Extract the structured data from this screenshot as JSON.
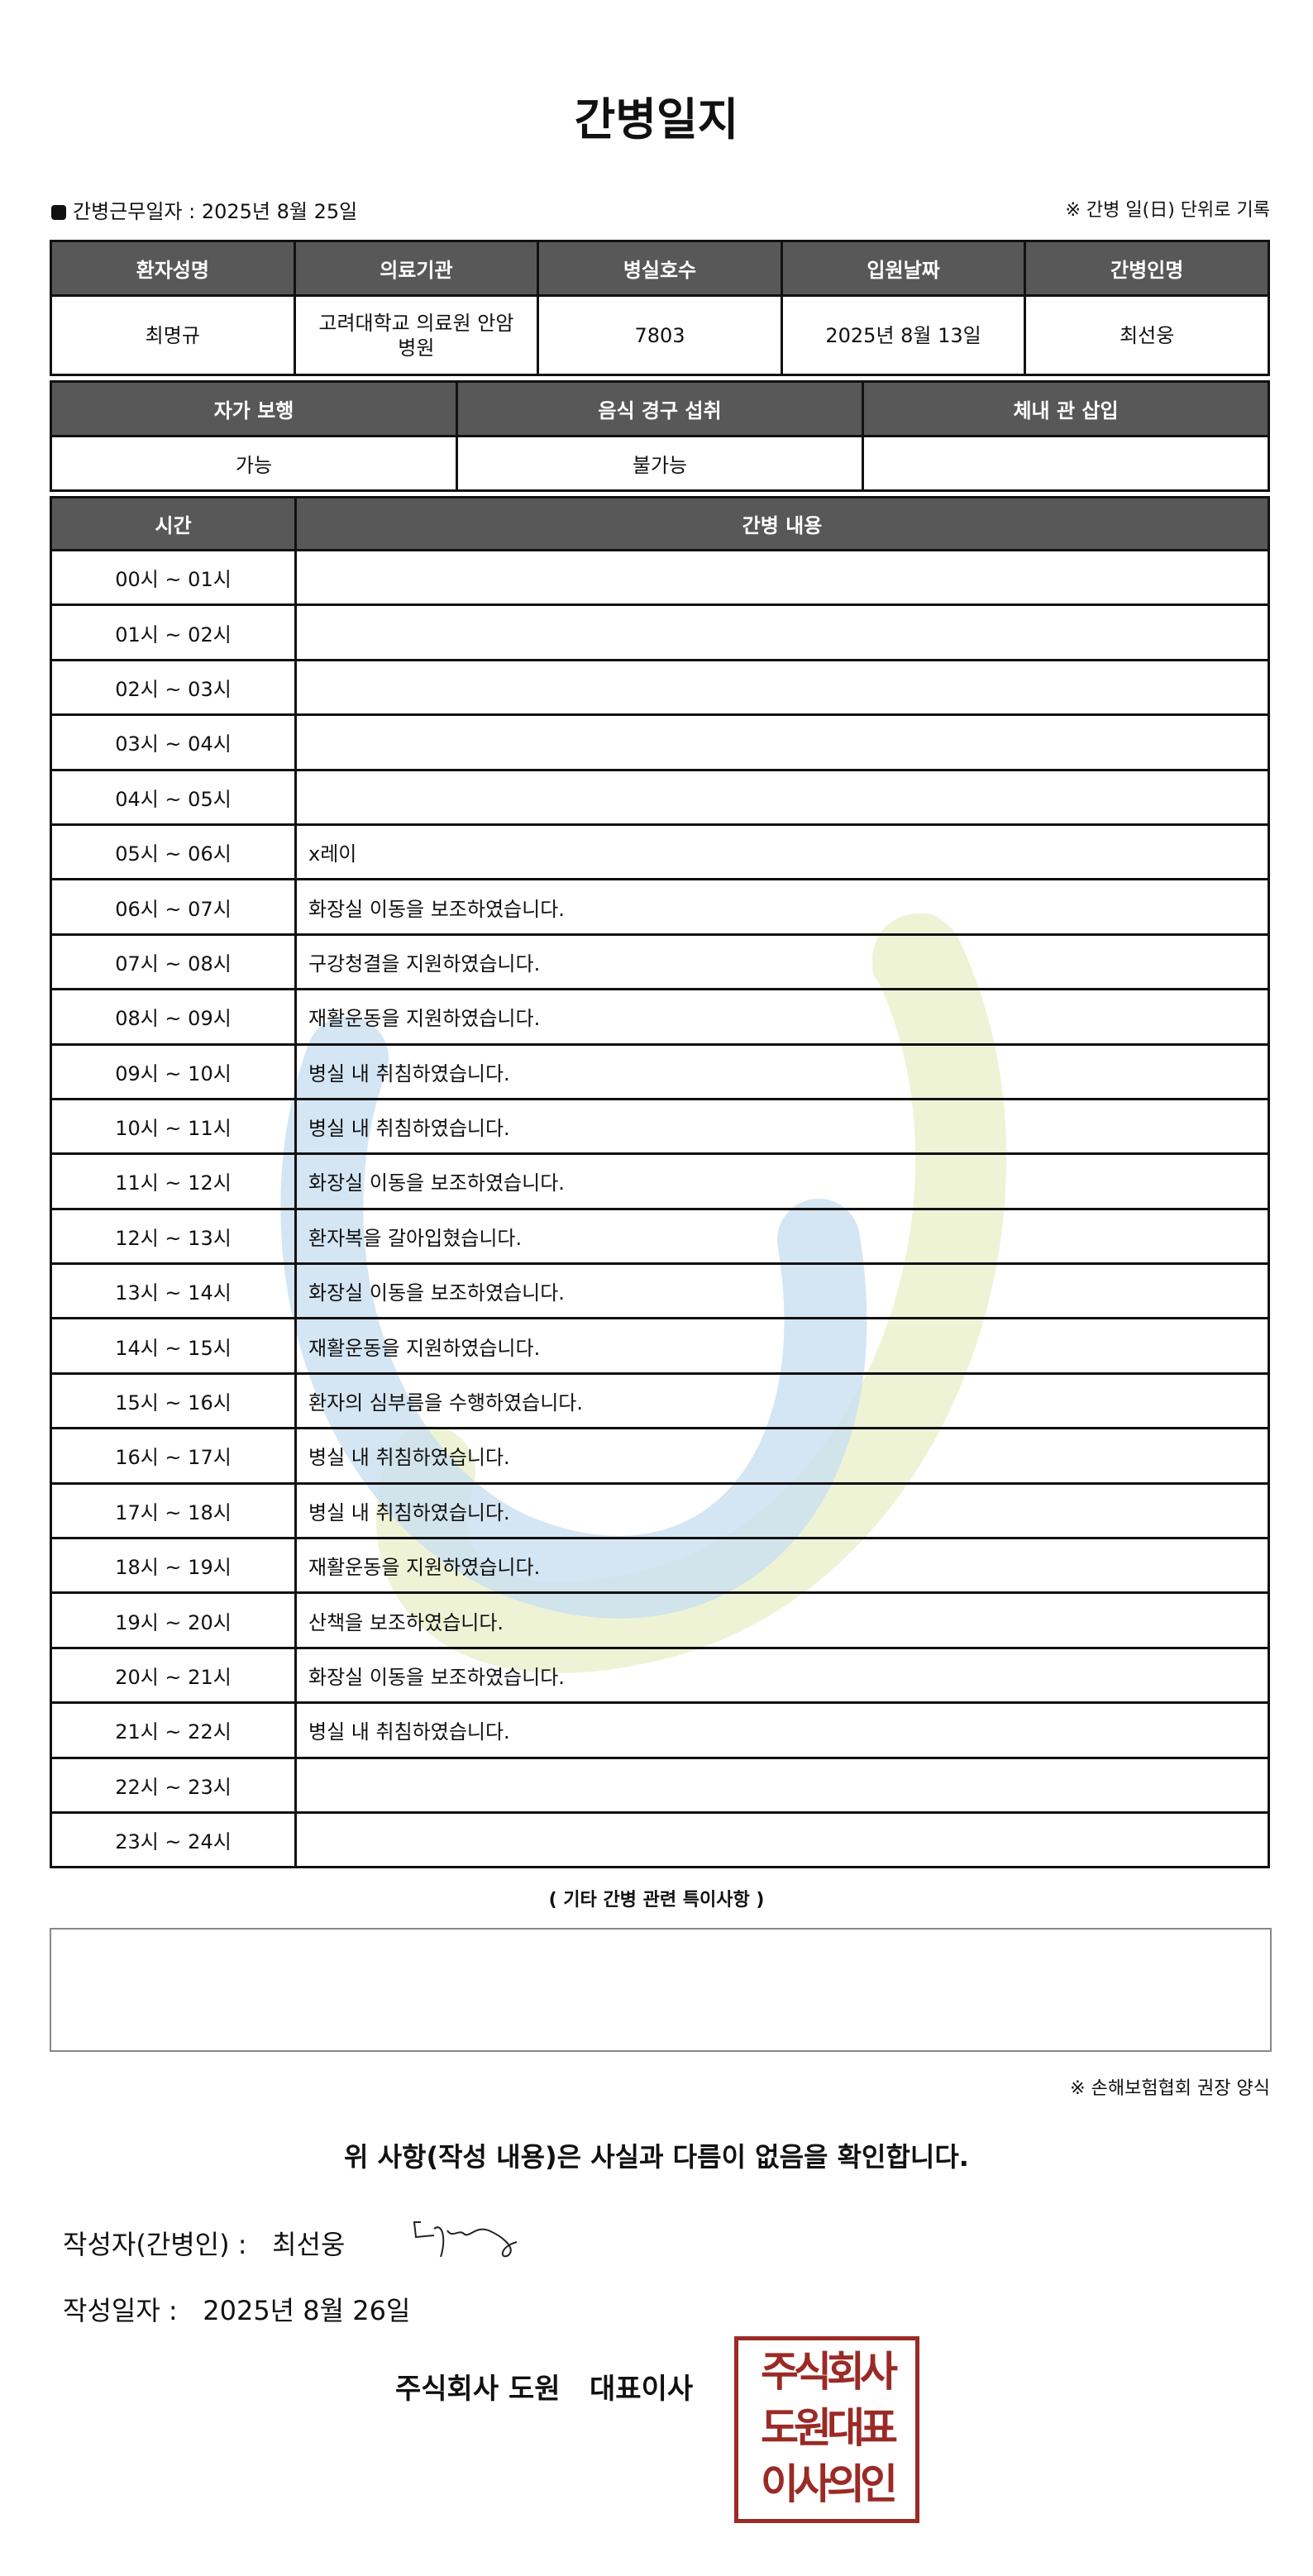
{
  "title": "간병일지",
  "work_date_label": "간병근무일자  :  2025년 8월 25일",
  "unit_note": "※ 간병 일(日) 단위로 기록",
  "info_table": {
    "headers": [
      "환자성명",
      "의료기관",
      "병실호수",
      "입원날짜",
      "간병인명"
    ],
    "values": [
      "최명규",
      "고려대학교 의료원 안암 병원",
      "7803",
      "2025년 8월 13일",
      "최선웅"
    ]
  },
  "status_table": {
    "headers": [
      "자가 보행",
      "음식 경구 섭취",
      "체내 관 삽입"
    ],
    "values": [
      "가능",
      "불가능",
      ""
    ]
  },
  "log_table": {
    "headers": [
      "시간",
      "간병 내용"
    ],
    "rows": [
      {
        "time": "00시 ~ 01시",
        "content": ""
      },
      {
        "time": "01시 ~ 02시",
        "content": ""
      },
      {
        "time": "02시 ~ 03시",
        "content": ""
      },
      {
        "time": "03시 ~ 04시",
        "content": ""
      },
      {
        "time": "04시 ~ 05시",
        "content": ""
      },
      {
        "time": "05시 ~ 06시",
        "content": "x레이"
      },
      {
        "time": "06시 ~ 07시",
        "content": "화장실 이동을 보조하였습니다."
      },
      {
        "time": "07시 ~ 08시",
        "content": "구강청결을 지원하였습니다."
      },
      {
        "time": "08시 ~ 09시",
        "content": "재활운동을 지원하였습니다."
      },
      {
        "time": "09시 ~ 10시",
        "content": "병실 내 취침하였습니다."
      },
      {
        "time": "10시 ~ 11시",
        "content": "병실 내 취침하였습니다."
      },
      {
        "time": "11시 ~ 12시",
        "content": "화장실 이동을 보조하였습니다."
      },
      {
        "time": "12시 ~ 13시",
        "content": "환자복을 갈아입혔습니다."
      },
      {
        "time": "13시 ~ 14시",
        "content": "화장실 이동을 보조하였습니다."
      },
      {
        "time": "14시 ~ 15시",
        "content": "재활운동을 지원하였습니다."
      },
      {
        "time": "15시 ~ 16시",
        "content": "환자의 심부름을 수행하였습니다."
      },
      {
        "time": "16시 ~ 17시",
        "content": "병실 내 취침하였습니다."
      },
      {
        "time": "17시 ~ 18시",
        "content": "병실 내 취침하였습니다."
      },
      {
        "time": "18시 ~ 19시",
        "content": "재활운동을 지원하였습니다."
      },
      {
        "time": "19시 ~ 20시",
        "content": "산책을 보조하였습니다."
      },
      {
        "time": "20시 ~ 21시",
        "content": "화장실 이동을 보조하였습니다."
      },
      {
        "time": "21시 ~ 22시",
        "content": "병실 내 취침하였습니다."
      },
      {
        "time": "22시 ~ 23시",
        "content": ""
      },
      {
        "time": "23시 ~ 24시",
        "content": ""
      }
    ]
  },
  "notes_title": "( 기타 간병 관련 특이사항 )",
  "notes": "",
  "form_note": "※ 손해보험협회 권장 양식",
  "confirm": "위 사항(작성 내용)은 사실과 다름이 없음을 확인합니다.",
  "writer_label": "작성자(간병인) :",
  "writer_name": "최선웅",
  "date_label": "작성일자 :",
  "date_value": "2025년 8월 26일",
  "company": "주식회사 도원   대표이사",
  "seal_text": "주식회사 도원대표 이사의인",
  "colors": {
    "header": "#585858",
    "seal": "#9b2a26",
    "watermark_blue": "#c9dff0",
    "watermark_green": "#eef3d6"
  }
}
